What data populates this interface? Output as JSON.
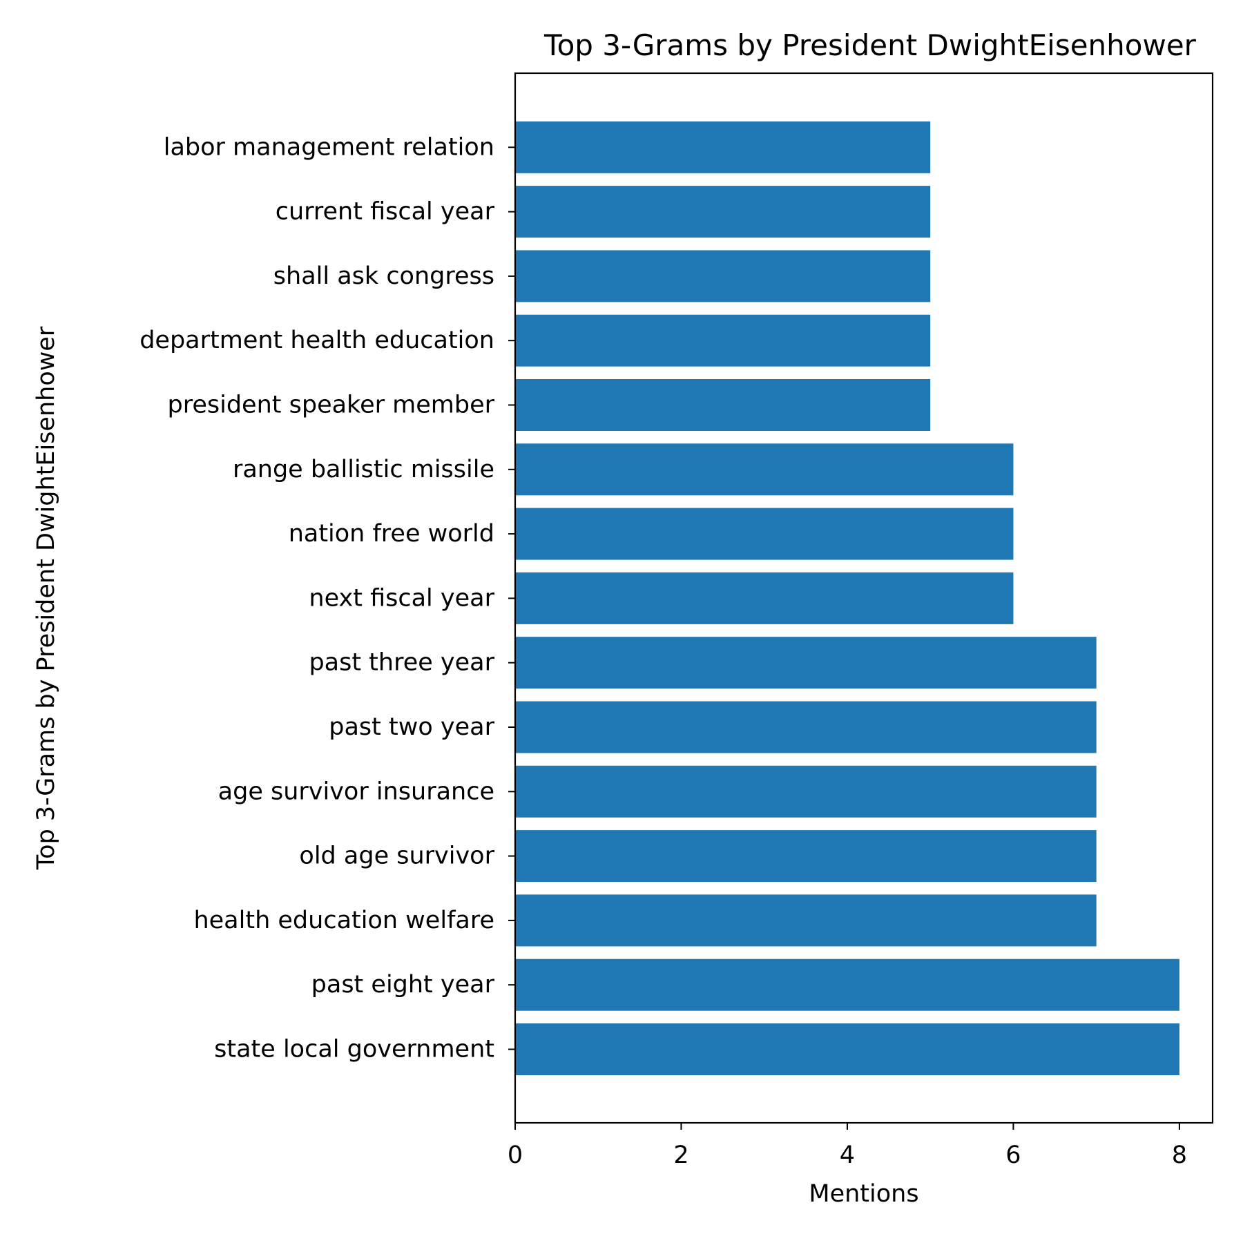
{
  "chart_data": {
    "type": "bar",
    "orientation": "horizontal",
    "title": "Top 3-Grams by President DwightEisenhower",
    "xlabel": "Mentions",
    "ylabel": "Top 3-Grams by President DwightEisenhower",
    "xlim": [
      0,
      8.4
    ],
    "xticks": [
      0,
      2,
      4,
      6,
      8
    ],
    "grid": false,
    "bar_color": "#1f77b4",
    "categories": [
      "state local government",
      "past eight year",
      "health education welfare",
      "old age survivor",
      "age survivor insurance",
      "past two year",
      "past three year",
      "next fiscal year",
      "nation free world",
      "range ballistic missile",
      "president speaker member",
      "department health education",
      "shall ask congress",
      "current fiscal year",
      "labor management relation"
    ],
    "values": [
      8,
      8,
      7,
      7,
      7,
      7,
      7,
      6,
      6,
      6,
      5,
      5,
      5,
      5,
      5
    ]
  }
}
